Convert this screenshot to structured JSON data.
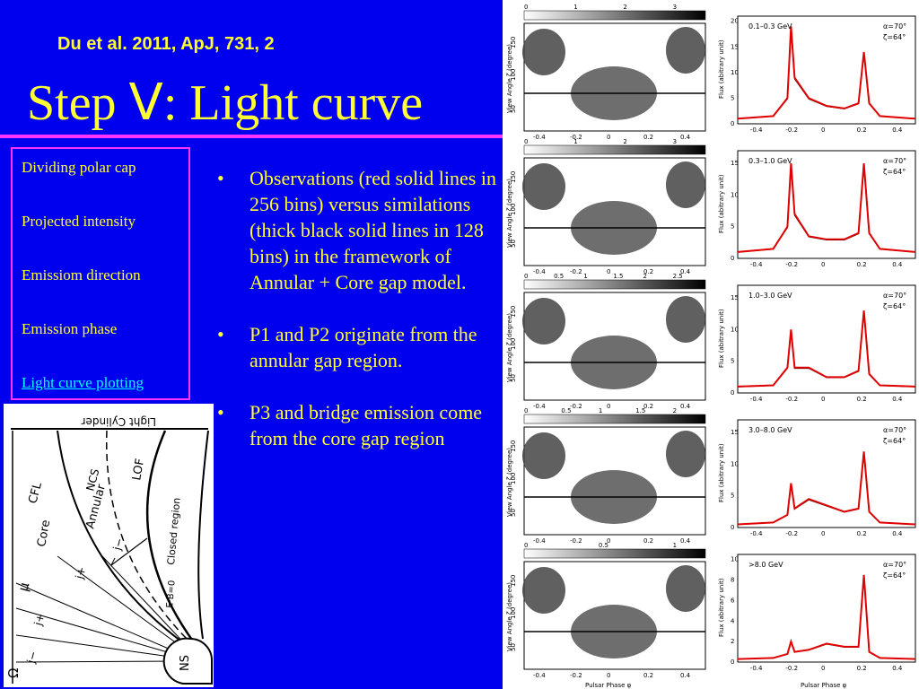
{
  "header": {
    "citation": "Du et al. 2011, ApJ, 731, 2",
    "title": "Step Ⅴ: Light curve"
  },
  "nav": {
    "items": [
      {
        "label": "Dividing polar cap",
        "active": false
      },
      {
        "label": "Projected intensity",
        "active": false
      },
      {
        "label": "Emissiom direction",
        "active": false
      },
      {
        "label": "Emission phase",
        "active": false
      },
      {
        "label": "Light curve plotting",
        "active": true
      }
    ]
  },
  "bullets": [
    "Observations (red solid lines in 256 bins) versus similations (thick black solid lines in 128 bins) in the framework of Annular + Core gap model.",
    "P1 and P2 originate from the annular gap region.",
    "P3 and bridge emission come from the core gap region"
  ],
  "diagram": {
    "labels": {
      "light_cylinder": "Light Cylinder",
      "cfl": "CFL",
      "ncs": "NCS",
      "lof": "LOF",
      "core": "Core",
      "annular": "Annular",
      "closed_region": "Closed region",
      "ebzero": "E·B=0",
      "mu": "μ",
      "omega": "Ω",
      "ns": "NS",
      "jplus1": "j+",
      "jplus2": "j+",
      "jminus1": "j−",
      "jminus2": "j−"
    }
  },
  "figure": {
    "colormap_ticks": [
      [
        "0",
        "1",
        "2",
        "3"
      ],
      [
        "0",
        "1",
        "2",
        "3"
      ],
      [
        "0",
        "0.5",
        "1",
        "1.5",
        "2",
        "2.5"
      ],
      [
        "0",
        "0.5",
        "1",
        "1.5",
        "2"
      ],
      [
        "0",
        "0.5",
        "1"
      ]
    ],
    "map_ylabel": "View Angle ζ (degree)",
    "map_yticks": [
      "50",
      "100",
      "150"
    ],
    "phase_ticks": [
      "-0.4",
      "-0.2",
      "0",
      "0.2",
      "0.4"
    ],
    "xlabel": "Pulsar Phase φ",
    "curve_ylabel": "Flux (abitrary unit)",
    "alpha": "α=70°",
    "zeta": "ζ=64°",
    "colors": {
      "observation": "#e00000",
      "simulation": "#000000"
    }
  },
  "chart_data": [
    {
      "type": "line",
      "energy": "0.1–0.3 GeV",
      "yticks": [
        "0",
        "5",
        "10",
        "15",
        "20"
      ],
      "ylim": [
        0,
        21
      ],
      "x": [
        -0.5,
        -0.3,
        -0.22,
        -0.2,
        -0.18,
        -0.1,
        0,
        0.1,
        0.18,
        0.21,
        0.24,
        0.3,
        0.5
      ],
      "series": [
        {
          "values": [
            1,
            1.5,
            5,
            19,
            9,
            5,
            3.5,
            3,
            4,
            14,
            4,
            1.5,
            1
          ]
        }
      ]
    },
    {
      "type": "line",
      "energy": "0.3–1.0 GeV",
      "yticks": [
        "0",
        "5",
        "10",
        "15"
      ],
      "ylim": [
        0,
        17
      ],
      "x": [
        -0.5,
        -0.3,
        -0.22,
        -0.2,
        -0.18,
        -0.1,
        0,
        0.1,
        0.18,
        0.21,
        0.24,
        0.3,
        0.5
      ],
      "series": [
        {
          "values": [
            1,
            1.5,
            5,
            15,
            7,
            3.5,
            3,
            3,
            4,
            15,
            4,
            1.5,
            1
          ]
        }
      ]
    },
    {
      "type": "line",
      "energy": "1.0–3.0 GeV",
      "yticks": [
        "0",
        "5",
        "10",
        "15"
      ],
      "ylim": [
        0,
        17
      ],
      "x": [
        -0.5,
        -0.3,
        -0.22,
        -0.2,
        -0.18,
        -0.1,
        0,
        0.1,
        0.18,
        0.21,
        0.24,
        0.3,
        0.5
      ],
      "series": [
        {
          "values": [
            1,
            1.2,
            4,
            10,
            4,
            4,
            2.5,
            2.5,
            3.5,
            13,
            3,
            1.2,
            1
          ]
        }
      ]
    },
    {
      "type": "line",
      "energy": "3.0–8.0 GeV",
      "yticks": [
        "0",
        "5",
        "10",
        "15"
      ],
      "ylim": [
        0,
        17
      ],
      "x": [
        -0.5,
        -0.3,
        -0.22,
        -0.2,
        -0.18,
        -0.1,
        0,
        0.1,
        0.18,
        0.21,
        0.24,
        0.3,
        0.5
      ],
      "series": [
        {
          "values": [
            0.5,
            0.8,
            2,
            7,
            3,
            4.5,
            3.5,
            2.5,
            3,
            12,
            2.5,
            0.8,
            0.5
          ]
        }
      ]
    },
    {
      "type": "line",
      "energy": ">8.0 GeV",
      "yticks": [
        "0",
        "2",
        "4",
        "6",
        "8",
        "10"
      ],
      "ylim": [
        0,
        10.5
      ],
      "x": [
        -0.5,
        -0.3,
        -0.22,
        -0.2,
        -0.18,
        -0.1,
        0,
        0.1,
        0.18,
        0.21,
        0.24,
        0.3,
        0.5
      ],
      "series": [
        {
          "values": [
            0.3,
            0.4,
            0.8,
            2,
            1,
            1.2,
            1.8,
            1.5,
            1.5,
            8.5,
            1,
            0.4,
            0.3
          ]
        }
      ]
    }
  ]
}
